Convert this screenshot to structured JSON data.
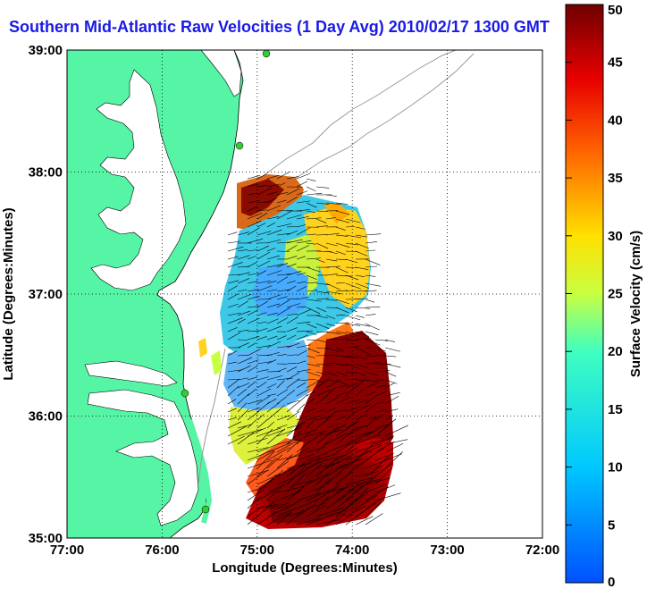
{
  "title": "Southern Mid-Atlantic Raw Velocities (1 Day Avg) 2010/02/17 1300 GMT",
  "xlabel": "Longitude (Degrees:Minutes)",
  "ylabel": "Latitude (Degrees:Minutes)",
  "colorbar_label": "Surface Velocity (cm/s)",
  "xticks": [
    "77:00",
    "76:00",
    "75:00",
    "74:00",
    "73:00",
    "72:00"
  ],
  "yticks": [
    "39:00",
    "38:00",
    "37:00",
    "36:00",
    "35:00"
  ],
  "colorbar_ticks": [
    "0",
    "5",
    "10",
    "15",
    "20",
    "25",
    "30",
    "35",
    "40",
    "45",
    "50"
  ],
  "colorbar_range": [
    0,
    50
  ],
  "colors": {
    "land": "#55f5a5",
    "water": "#ffffff",
    "title": "#1a1ae6",
    "station": "#33cc33"
  }
}
